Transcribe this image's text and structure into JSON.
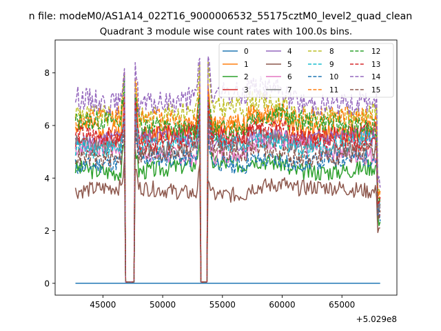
{
  "chart_data": {
    "type": "line",
    "suptitle": "n file: modeM0/AS1A14_022T16_9000006532_55175cztM0_level2_quad_clean",
    "title": "Quadrant 3 module wise count rates with 100.0s bins.",
    "xlabel": "",
    "ylabel": "",
    "x_offset_label": "+5.029e8",
    "xlim": [
      41000,
      69600
    ],
    "ylim": [
      -0.45,
      9.25
    ],
    "xticks": [
      45000,
      50000,
      55000,
      60000,
      65000
    ],
    "xtick_labels": [
      "45000",
      "50000",
      "55000",
      "60000",
      "65000"
    ],
    "yticks": [
      0,
      2,
      4,
      6,
      8
    ],
    "ytick_labels": [
      "0",
      "2",
      "4",
      "6",
      "8"
    ],
    "x_range": [
      42700,
      68200
    ],
    "gaps": [
      [
        46900,
        47600
      ],
      [
        53200,
        53700
      ]
    ],
    "legend_location": "upper right",
    "series": [
      {
        "name": "0",
        "color": "#1f77b4",
        "style": "solid",
        "level": 0.0,
        "amp": 0.0,
        "seed": 1
      },
      {
        "name": "1",
        "color": "#ff7f0e",
        "style": "solid",
        "level": 5.9,
        "amp": 0.32,
        "seed": 2
      },
      {
        "name": "2",
        "color": "#2ca02c",
        "style": "solid",
        "level": 4.4,
        "amp": 0.28,
        "seed": 3
      },
      {
        "name": "3",
        "color": "#d62728",
        "style": "solid",
        "level": 5.6,
        "amp": 0.3,
        "seed": 4
      },
      {
        "name": "4",
        "color": "#9467bd",
        "style": "solid",
        "level": 5.4,
        "amp": 0.3,
        "seed": 5
      },
      {
        "name": "5",
        "color": "#8c564b",
        "style": "solid",
        "level": 3.5,
        "amp": 0.25,
        "seed": 6
      },
      {
        "name": "6",
        "color": "#e377c2",
        "style": "solid",
        "level": 5.0,
        "amp": 0.3,
        "seed": 7
      },
      {
        "name": "7",
        "color": "#7f7f7f",
        "style": "solid",
        "level": 5.2,
        "amp": 0.28,
        "seed": 8
      },
      {
        "name": "8",
        "color": "#bcbd22",
        "style": "dashed",
        "level": 6.5,
        "amp": 0.34,
        "seed": 9
      },
      {
        "name": "9",
        "color": "#17becf",
        "style": "dashed",
        "level": 5.3,
        "amp": 0.3,
        "seed": 10
      },
      {
        "name": "10",
        "color": "#1f77b4",
        "style": "dashed",
        "level": 4.6,
        "amp": 0.28,
        "seed": 11
      },
      {
        "name": "11",
        "color": "#ff7f0e",
        "style": "dashed",
        "level": 6.2,
        "amp": 0.32,
        "seed": 12
      },
      {
        "name": "12",
        "color": "#2ca02c",
        "style": "dashed",
        "level": 6.0,
        "amp": 0.32,
        "seed": 13
      },
      {
        "name": "13",
        "color": "#d62728",
        "style": "dashed",
        "level": 5.5,
        "amp": 0.3,
        "seed": 14
      },
      {
        "name": "14",
        "color": "#9467bd",
        "style": "dashed",
        "level": 7.0,
        "amp": 0.36,
        "seed": 15
      },
      {
        "name": "15",
        "color": "#8c564b",
        "style": "dashed",
        "level": 4.9,
        "amp": 0.28,
        "seed": 16
      }
    ]
  }
}
